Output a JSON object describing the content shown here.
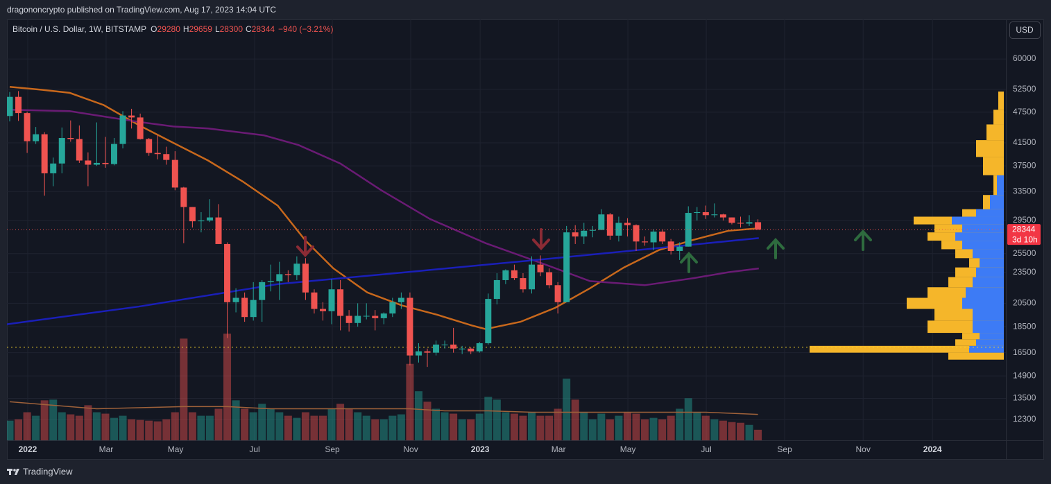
{
  "header": "dragononcrypto published on TradingView.com, Aug 17, 2023 14:04 UTC",
  "footer": "TradingView",
  "chart_data": {
    "type": "candlestick",
    "symbol": "Bitcoin / U.S. Dollar, 1W, BITSTAMP",
    "ohlc_labels": [
      "O",
      "H",
      "L",
      "C"
    ],
    "change_label": "−940 (−3.21%)",
    "currency": "USD",
    "countdown": "3d 10h",
    "log_scale": true,
    "grid": true,
    "up_color": "#26a69a",
    "down_color": "#ef5350",
    "open": [
      46700,
      50800,
      47300,
      41800,
      43100,
      36300,
      37900,
      42400,
      42200,
      38400,
      37700,
      38000,
      37800,
      41300,
      46800,
      46400,
      42200,
      39700,
      39500,
      38500,
      34100,
      31300,
      29400,
      29500,
      29900,
      26600,
      20600,
      21000,
      19300,
      20800,
      22500,
      22600,
      23300,
      23200,
      24400,
      21500,
      20000,
      19800,
      21800,
      19400,
      18800,
      19400,
      19400,
      19200,
      19600,
      20600,
      21000,
      16300,
      16600,
      16500,
      17100,
      17100,
      16800,
      16800,
      16600,
      17200,
      20900,
      22700,
      23700,
      22900,
      21800,
      24300,
      23500,
      22200,
      20600,
      28000,
      27500,
      28200,
      28300,
      30300,
      27600,
      29200,
      28900,
      26900,
      26800,
      28100,
      26900,
      25800,
      26300,
      30500,
      30600,
      30200,
      30300,
      29900,
      29200,
      29100,
      29280
    ],
    "high": [
      51900,
      52100,
      47600,
      44500,
      43500,
      38900,
      44400,
      45800,
      44800,
      39800,
      45400,
      42600,
      42400,
      47700,
      48200,
      47200,
      42400,
      42900,
      40800,
      40000,
      34200,
      31300,
      30600,
      32400,
      31700,
      26800,
      21900,
      21500,
      22500,
      22700,
      24300,
      24600,
      23700,
      25200,
      25000,
      21800,
      20600,
      22800,
      22700,
      19900,
      20500,
      20500,
      19900,
      19700,
      21000,
      21500,
      21500,
      17200,
      16800,
      17400,
      17400,
      18400,
      17000,
      16900,
      17300,
      21400,
      23400,
      23800,
      24300,
      23400,
      25200,
      25300,
      23900,
      22500,
      28800,
      28900,
      29200,
      28800,
      31000,
      30500,
      30000,
      29800,
      29000,
      27500,
      28400,
      28400,
      27200,
      26800,
      31400,
      31300,
      31500,
      31800,
      30400,
      29900,
      30000,
      30200,
      29659
    ],
    "low": [
      45600,
      45700,
      39700,
      41300,
      32900,
      34300,
      36300,
      41700,
      38000,
      34300,
      37500,
      37200,
      37600,
      40500,
      44200,
      42100,
      39200,
      38600,
      37700,
      33700,
      26700,
      28600,
      28000,
      29300,
      26600,
      17600,
      19700,
      18900,
      19000,
      18900,
      21600,
      20800,
      22500,
      22700,
      20800,
      19600,
      19000,
      18700,
      18200,
      18100,
      18500,
      19100,
      18200,
      18700,
      19300,
      20000,
      15600,
      15800,
      15500,
      16300,
      16800,
      16500,
      16400,
      16400,
      16500,
      17100,
      20400,
      22300,
      22700,
      21500,
      21400,
      23100,
      21900,
      19600,
      20600,
      26600,
      26600,
      27400,
      28300,
      27100,
      26900,
      27500,
      25800,
      26400,
      25900,
      26600,
      25400,
      24800,
      26300,
      29500,
      29700,
      29900,
      29500,
      29000,
      28600,
      28800,
      28300
    ],
    "close": [
      50800,
      47300,
      41800,
      43100,
      36300,
      37900,
      42400,
      42200,
      38400,
      37700,
      38000,
      37800,
      41300,
      46800,
      46400,
      42200,
      39700,
      39500,
      38500,
      34100,
      31300,
      29400,
      29500,
      29900,
      26600,
      20600,
      21000,
      19300,
      20800,
      22500,
      22600,
      23300,
      23200,
      24400,
      21500,
      20000,
      19800,
      21800,
      19400,
      18800,
      19400,
      19400,
      19200,
      19600,
      20600,
      21000,
      16300,
      16600,
      16500,
      17100,
      17100,
      16800,
      16800,
      16600,
      17200,
      20900,
      22700,
      23700,
      22900,
      21800,
      24300,
      23500,
      22200,
      20600,
      28000,
      27500,
      28200,
      28300,
      30300,
      27600,
      29200,
      28900,
      26900,
      26800,
      28100,
      26900,
      25800,
      26300,
      30500,
      30600,
      30200,
      30300,
      29900,
      29200,
      29100,
      29280,
      28344
    ],
    "volume": [
      28,
      30,
      40,
      35,
      57,
      58,
      40,
      37,
      35,
      50,
      40,
      38,
      32,
      35,
      30,
      29,
      28,
      27,
      30,
      40,
      145,
      40,
      35,
      35,
      45,
      152,
      57,
      45,
      40,
      52,
      45,
      40,
      35,
      32,
      40,
      35,
      35,
      45,
      52,
      45,
      40,
      35,
      30,
      30,
      35,
      37,
      109,
      70,
      55,
      45,
      40,
      38,
      30,
      30,
      38,
      62,
      58,
      40,
      38,
      35,
      40,
      35,
      35,
      45,
      88,
      58,
      40,
      30,
      38,
      30,
      35,
      40,
      38,
      30,
      32,
      30,
      35,
      45,
      60,
      40,
      35,
      30,
      28,
      26,
      25,
      22,
      15
    ],
    "volume_lim": [
      0,
      600
    ],
    "volume_ma": {
      "color": "#a0623a",
      "x": [
        0,
        10,
        20,
        25,
        30,
        40,
        46,
        50,
        55,
        60,
        65,
        70,
        80,
        86
      ],
      "values": [
        55,
        45,
        48,
        48,
        45,
        45,
        45,
        42,
        42,
        40,
        40,
        40,
        40,
        37
      ]
    },
    "lines": [
      {
        "color": "#c8681c",
        "x": [
          0,
          3.7,
          6.9,
          10.8,
          14.8,
          18.8,
          22.8,
          26.8,
          30.8,
          34,
          37.2,
          41.1,
          45.1,
          49.1,
          53.1,
          54.7,
          58.7,
          62.7,
          66.7,
          70.6,
          74.6,
          78.6,
          82.6,
          86.1
        ],
        "values": [
          53100,
          52400,
          51700,
          49000,
          44900,
          41500,
          38400,
          35000,
          31500,
          27000,
          23900,
          21500,
          20300,
          19500,
          18600,
          18300,
          18900,
          20100,
          21900,
          24000,
          25900,
          27100,
          28200,
          28500
        ]
      },
      {
        "color": "#6a1b74",
        "x": [
          0,
          6.9,
          14.8,
          18.8,
          22.8,
          29.2,
          33.2,
          38,
          42.7,
          48.3,
          54.7,
          61,
          66.7,
          73,
          78.6,
          82.6,
          86.1
        ],
        "values": [
          48000,
          47700,
          45500,
          44600,
          44200,
          42900,
          41100,
          37900,
          33700,
          29700,
          26700,
          24500,
          22600,
          22200,
          22900,
          23500,
          23900
        ]
      },
      {
        "color": "#1a1fb8",
        "x": [
          -0.32,
          14.8,
          30.8,
          46.7,
          62.7,
          86.1
        ],
        "values": [
          18700,
          20200,
          22300,
          23600,
          25000,
          27300
        ]
      }
    ],
    "volume_profile": {
      "bins": [
        16000,
        16500,
        17000,
        17500,
        18000,
        19000,
        20000,
        21000,
        22000,
        23000,
        24000,
        25000,
        26000,
        27000,
        28000,
        29000,
        30000,
        31000,
        33000,
        36000,
        39000,
        42000,
        45000,
        48000,
        52000
      ],
      "values": [
        80,
        280,
        70,
        60,
        110,
        100,
        140,
        110,
        80,
        70,
        50,
        70,
        90,
        110,
        100,
        130,
        60,
        30,
        15,
        30,
        40,
        25,
        15,
        8
      ],
      "value_area": [
        0,
        50,
        40,
        35,
        45,
        45,
        60,
        55,
        45,
        40,
        35,
        45,
        60,
        70,
        60,
        75,
        40,
        20,
        10,
        0,
        0,
        0,
        0,
        0
      ],
      "lim": [
        0,
        300
      ],
      "color": "#f5b62a",
      "value_area_color": "#3d7bf5"
    },
    "poc": 16900,
    "ylim": [
      71400,
      11225
    ],
    "yticks": [
      60000,
      52500,
      47500,
      41500,
      37500,
      33500,
      29500,
      25500,
      23500,
      20500,
      18500,
      16500,
      14900,
      13500,
      12300
    ],
    "xlim": [
      -0.32,
      114.5
    ],
    "xticks": [
      {
        "value": 2.07,
        "label": "2022"
      },
      {
        "value": 11.08,
        "label": "Mar"
      },
      {
        "value": 19.06,
        "label": "May"
      },
      {
        "value": 28.15,
        "label": "Jul"
      },
      {
        "value": 37.08,
        "label": "Sep"
      },
      {
        "value": 46.09,
        "label": "Nov"
      },
      {
        "value": 54.07,
        "label": "2023"
      },
      {
        "value": 63.08,
        "label": "Mar"
      },
      {
        "value": 71.05,
        "label": "May"
      },
      {
        "value": 80.06,
        "label": "Jul"
      },
      {
        "value": 89.07,
        "label": "Sep"
      },
      {
        "value": 98.09,
        "label": "Nov"
      },
      {
        "value": 106.06,
        "label": "2024"
      }
    ]
  }
}
